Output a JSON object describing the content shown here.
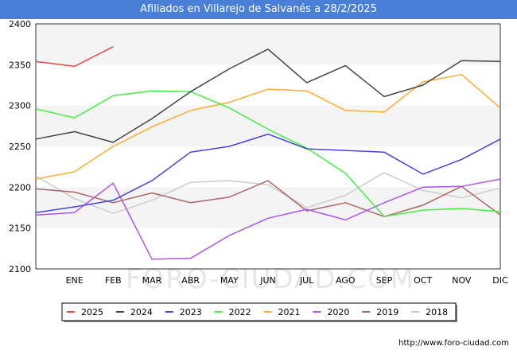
{
  "header": {
    "title": "Afiliados en Villarejo de Salvanés a 28/2/2025"
  },
  "source": "http://www.foro-ciudad.com",
  "watermark": "FORO-CIUDAD.COM",
  "chart_data": {
    "type": "line",
    "title": "Afiliados en Villarejo de Salvanés a 28/2/2025",
    "xlabel": "",
    "ylabel": "",
    "ylim": [
      2100,
      2400
    ],
    "yticks": [
      2100,
      2150,
      2200,
      2250,
      2300,
      2350,
      2400
    ],
    "x_tick_labels": [
      "",
      "ENE",
      "FEB",
      "MAR",
      "ABR",
      "MAY",
      "JUN",
      "JUL",
      "AGO",
      "SEP",
      "OCT",
      "NOV",
      "DIC"
    ],
    "grid": "horizontal bands",
    "legend_position": "bottom",
    "series": [
      {
        "name": "2025",
        "color": "#ee4444",
        "values": [
          2354,
          2348,
          2372,
          null,
          null,
          null,
          null,
          null,
          null,
          null,
          null,
          null,
          null
        ]
      },
      {
        "name": "2024",
        "color": "#444444",
        "values": [
          2259,
          2268,
          2255,
          2284,
          2317,
          2345,
          2369,
          2328,
          2349,
          2311,
          2325,
          2355,
          2354
        ]
      },
      {
        "name": "2023",
        "color": "#4444dd",
        "values": [
          2169,
          2176,
          2184,
          2208,
          2243,
          2250,
          2265,
          2247,
          2245,
          2243,
          2216,
          2234,
          2259
        ]
      },
      {
        "name": "2022",
        "color": "#44ee44",
        "values": [
          2296,
          2285,
          2312,
          2318,
          2317,
          2297,
          2271,
          2248,
          2217,
          2164,
          2172,
          2174,
          2170
        ]
      },
      {
        "name": "2021",
        "color": "#ffaa33",
        "values": [
          2210,
          2219,
          2250,
          2274,
          2294,
          2304,
          2320,
          2318,
          2294,
          2292,
          2329,
          2338,
          2297
        ]
      },
      {
        "name": "2020",
        "color": "#aa55ee",
        "values": [
          2166,
          2169,
          2205,
          2112,
          2113,
          2141,
          2162,
          2173,
          2160,
          2181,
          2200,
          2201,
          2210
        ]
      },
      {
        "name": "2019",
        "color": "#aa6666",
        "values": [
          2198,
          2194,
          2181,
          2193,
          2181,
          2188,
          2208,
          2171,
          2181,
          2164,
          2178,
          2201,
          2166
        ]
      },
      {
        "name": "2018",
        "color": "#cccccc",
        "values": [
          2214,
          2186,
          2168,
          2184,
          2206,
          2208,
          2203,
          2175,
          2190,
          2218,
          2196,
          2187,
          2199
        ]
      }
    ]
  }
}
